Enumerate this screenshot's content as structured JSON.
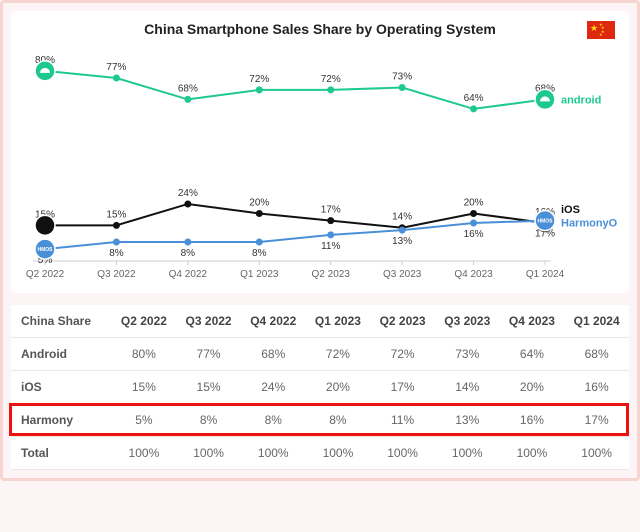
{
  "chart": {
    "type": "line",
    "title": "China Smartphone Sales Share by Operating System",
    "background_color": "#ffffff",
    "outer_background": "#fdf5f5",
    "outer_border_color": "#f8d4d0",
    "flag_country": "China",
    "categories": [
      "Q2 2022",
      "Q3 2022",
      "Q4 2022",
      "Q1 2023",
      "Q2 2023",
      "Q3 2023",
      "Q4 2023",
      "Q1 2024"
    ],
    "ylim": [
      0,
      85
    ],
    "value_label_fontsize": 10,
    "tick_label_fontsize": 10,
    "title_fontsize": 14,
    "end_label_fontsize": 11,
    "line_width": 2,
    "marker_radius": 3.5,
    "start_end_icon_radius": 10,
    "series": {
      "android": {
        "name": "android",
        "label": "android",
        "color": "#1dc990",
        "values": [
          80,
          77,
          68,
          72,
          72,
          73,
          64,
          68
        ],
        "icon": "android-icon"
      },
      "ios": {
        "name": "iOS",
        "label": "iOS",
        "color": "#111111",
        "values": [
          15,
          15,
          24,
          20,
          17,
          14,
          20,
          16
        ],
        "icon": "apple-icon"
      },
      "harmony": {
        "name": "HarmonyOS",
        "label": "HarmonyOS",
        "color": "#4a90d9",
        "values": [
          5,
          8,
          8,
          8,
          11,
          13,
          16,
          17
        ],
        "icon": "harmonyos-icon"
      }
    }
  },
  "table": {
    "header_first": "China Share",
    "columns": [
      "Q2 2022",
      "Q3 2022",
      "Q4 2022",
      "Q1 2023",
      "Q2 2023",
      "Q3 2023",
      "Q4 2023",
      "Q1 2024"
    ],
    "rows": [
      {
        "label": "Android",
        "values": [
          "80%",
          "77%",
          "68%",
          "72%",
          "72%",
          "73%",
          "64%",
          "68%"
        ]
      },
      {
        "label": "iOS",
        "values": [
          "15%",
          "15%",
          "24%",
          "20%",
          "17%",
          "14%",
          "20%",
          "16%"
        ]
      },
      {
        "label": "Harmony",
        "values": [
          "5%",
          "8%",
          "8%",
          "8%",
          "11%",
          "13%",
          "16%",
          "17%"
        ]
      },
      {
        "label": "Total",
        "values": [
          "100%",
          "100%",
          "100%",
          "100%",
          "100%",
          "100%",
          "100%",
          "100%"
        ]
      }
    ],
    "highlight_row_index": 2,
    "highlight_color": "#e11",
    "header_fontsize": 12,
    "cell_fontsize": 12
  }
}
